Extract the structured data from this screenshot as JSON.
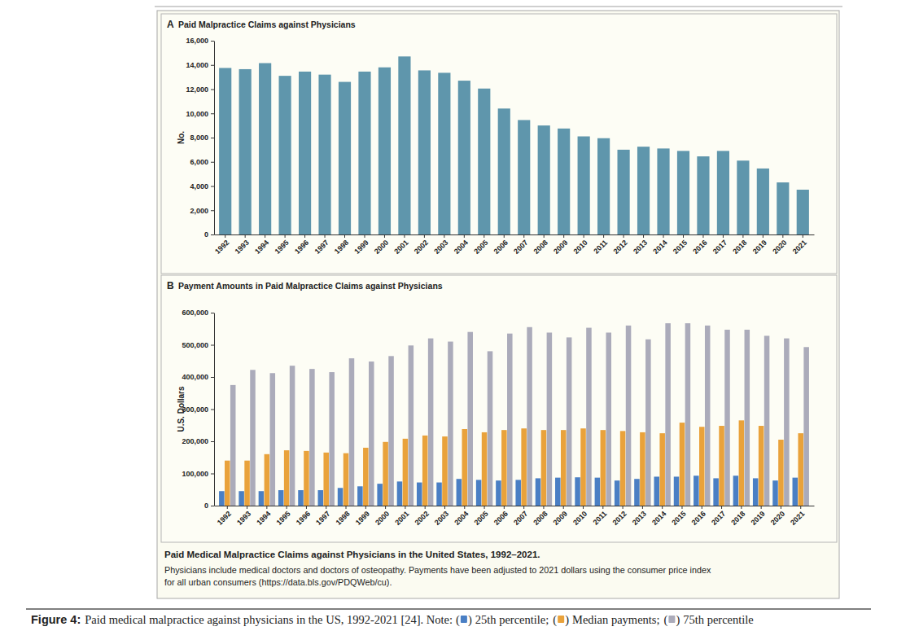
{
  "chart_data": [
    {
      "type": "bar",
      "panel_label": "A",
      "title": "Paid Malpractice Claims against Physicians",
      "y_label": "No.",
      "categories": [
        "1992",
        "1993",
        "1994",
        "1995",
        "1996",
        "1997",
        "1998",
        "1999",
        "2000",
        "2001",
        "2002",
        "2003",
        "2004",
        "2005",
        "2006",
        "2007",
        "2008",
        "2009",
        "2010",
        "2011",
        "2012",
        "2013",
        "2014",
        "2015",
        "2016",
        "2017",
        "2018",
        "2019",
        "2020",
        "2021"
      ],
      "values": [
        13750,
        13650,
        14150,
        13100,
        13450,
        13200,
        12600,
        13450,
        13800,
        14700,
        13550,
        13350,
        12700,
        12050,
        10400,
        9450,
        9000,
        8750,
        8100,
        7950,
        7000,
        7250,
        7100,
        6900,
        6450,
        6900,
        6100,
        5450,
        4300,
        3700
      ],
      "color": "#5f96ac",
      "ylim": [
        0,
        16000
      ],
      "yticks": [
        0,
        {
          "value": 2000,
          "label": "2,000"
        },
        {
          "value": 4000,
          "label": "4,000"
        },
        {
          "value": 6000,
          "label": "6,000"
        },
        {
          "value": 8000,
          "label": "8,000"
        },
        {
          "value": 10000,
          "label": "10,000"
        },
        {
          "value": 12000,
          "label": "12,000"
        },
        {
          "value": 14000,
          "label": "14,000"
        },
        {
          "value": 16000,
          "label": "16,000"
        }
      ],
      "grid": false
    },
    {
      "type": "bar",
      "panel_label": "B",
      "title": "Payment Amounts in Paid Malpractice Claims against Physicians",
      "y_label": "U.S. Dollars",
      "categories": [
        "1992",
        "1993",
        "1994",
        "1995",
        "1996",
        "1997",
        "1998",
        "1999",
        "2000",
        "2001",
        "2002",
        "2003",
        "2004",
        "2005",
        "2006",
        "2007",
        "2008",
        "2009",
        "2010",
        "2011",
        "2012",
        "2013",
        "2014",
        "2015",
        "2016",
        "2017",
        "2018",
        "2019",
        "2020",
        "2021"
      ],
      "series": [
        {
          "name": "25th percentile",
          "color": "#4a7fc4",
          "values": [
            45000,
            45000,
            45000,
            48000,
            48000,
            48000,
            55000,
            60000,
            68000,
            75000,
            72000,
            72000,
            83000,
            80000,
            78000,
            80000,
            85000,
            87000,
            88000,
            87000,
            78000,
            83000,
            90000,
            90000,
            93000,
            85000,
            93000,
            85000,
            78000,
            87000
          ]
        },
        {
          "name": "Median payments",
          "color": "#e9a23b",
          "values": [
            140000,
            140000,
            160000,
            172000,
            170000,
            165000,
            163000,
            180000,
            198000,
            208000,
            218000,
            215000,
            238000,
            228000,
            235000,
            240000,
            235000,
            235000,
            240000,
            235000,
            232000,
            228000,
            225000,
            258000,
            245000,
            248000,
            265000,
            248000,
            205000,
            225000
          ]
        },
        {
          "name": "75th percentile",
          "color": "#ababba",
          "values": [
            375000,
            422000,
            412000,
            435000,
            425000,
            415000,
            458000,
            448000,
            465000,
            498000,
            520000,
            510000,
            540000,
            480000,
            535000,
            555000,
            538000,
            523000,
            553000,
            538000,
            560000,
            517000,
            567000,
            567000,
            560000,
            547000,
            547000,
            528000,
            520000,
            493000
          ]
        }
      ],
      "ylim": [
        0,
        600000
      ],
      "yticks": [
        0,
        {
          "value": 100000,
          "label": "100,000"
        },
        {
          "value": 200000,
          "label": "200,000"
        },
        {
          "value": 300000,
          "label": "300,000"
        },
        {
          "value": 400000,
          "label": "400,000"
        },
        {
          "value": 500000,
          "label": "500,000"
        },
        {
          "value": 600000,
          "label": "600,000"
        }
      ],
      "grid": false,
      "legend": "bottom"
    }
  ],
  "figure": {
    "heading": "Paid Medical Malpractice Claims against Physicians in the United States, 1992–2021.",
    "note": [
      "Physicians include medical doctors and doctors of osteopathy. Payments have been adjusted to 2021 dollars using the consumer price index",
      "for all urban consumers (https://data.bls.gov/PDQWeb/cu)."
    ],
    "label": "Figure 4:",
    "caption": "Paid medical malpractice against physicians in the US, 1992-2021 [24]. Note:",
    "note_brackets": [
      "(",
      ")"
    ],
    "note_separator": ";"
  }
}
